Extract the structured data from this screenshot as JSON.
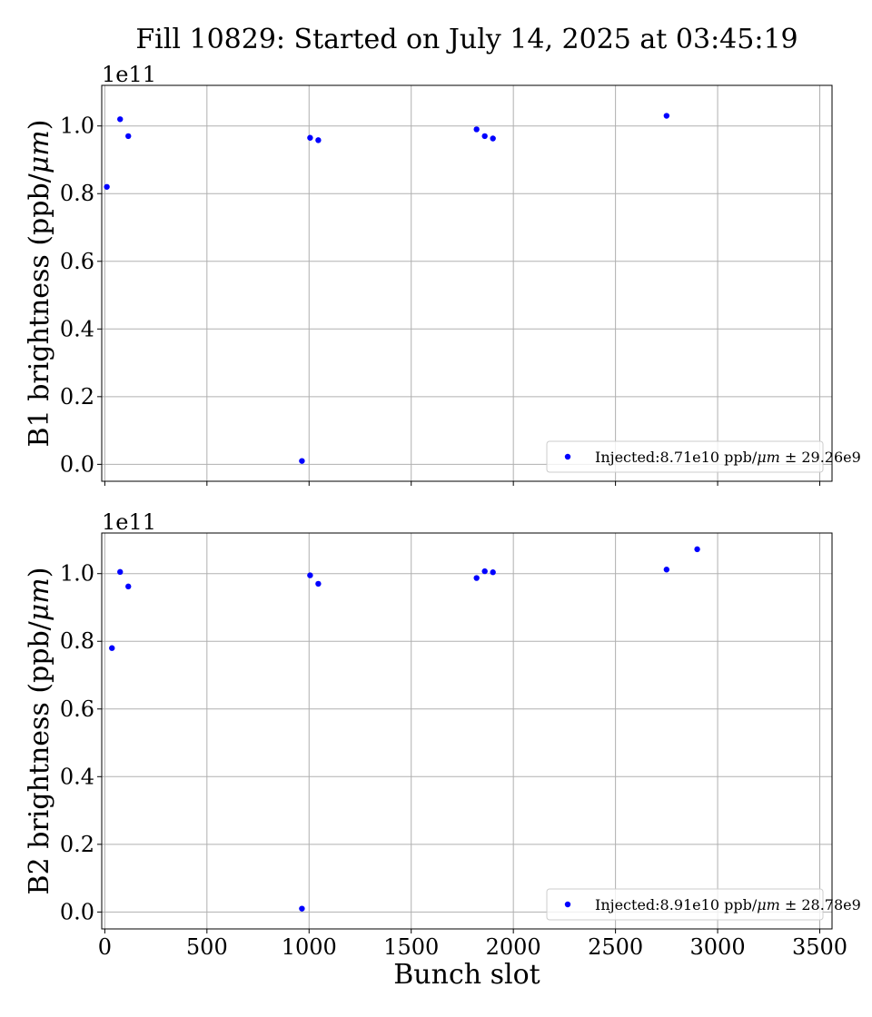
{
  "chart_data": {
    "type": "scatter",
    "title": "Fill 10829: Started on July 14, 2025 at 03:45:19",
    "xlabel": "Bunch slot",
    "xlim": [
      -15,
      3560
    ],
    "xticks": [
      0,
      500,
      1000,
      1500,
      2000,
      2500,
      3000,
      3500
    ],
    "panels": [
      {
        "ylabel": "B1 brightness (ppb/",
        "ylabel_unit": "μm",
        "ylabel_end": ")",
        "offset_text": "1e11",
        "ylim": [
          -0.05,
          1.12
        ],
        "yticks": [
          0.0,
          0.2,
          0.4,
          0.6,
          0.8,
          1.0
        ],
        "ytick_labels": [
          "0.0",
          "0.2",
          "0.4",
          "0.6",
          "0.8",
          "1.0"
        ],
        "legend": "Injected:8.71e10 ppb/",
        "legend_unit": "μm",
        "legend_end": " ± 29.26e9",
        "legend_loc": "lower right",
        "series": [
          {
            "color": "#0000ff",
            "points": [
              [
                10,
                0.82
              ],
              [
                75,
                1.02
              ],
              [
                115,
                0.97
              ],
              [
                965,
                0.01
              ],
              [
                1005,
                0.965
              ],
              [
                1045,
                0.958
              ],
              [
                1820,
                0.99
              ],
              [
                1860,
                0.97
              ],
              [
                1900,
                0.963
              ],
              [
                2750,
                1.03
              ]
            ]
          }
        ]
      },
      {
        "ylabel": "B2 brightness (ppb/",
        "ylabel_unit": "μm",
        "ylabel_end": ")",
        "offset_text": "1e11",
        "ylim": [
          -0.05,
          1.12
        ],
        "yticks": [
          0.0,
          0.2,
          0.4,
          0.6,
          0.8,
          1.0
        ],
        "ytick_labels": [
          "0.0",
          "0.2",
          "0.4",
          "0.6",
          "0.8",
          "1.0"
        ],
        "legend": "Injected:8.91e10 ppb/",
        "legend_unit": "μm",
        "legend_end": " ± 28.78e9",
        "legend_loc": "lower right",
        "series": [
          {
            "color": "#0000ff",
            "points": [
              [
                35,
                0.78
              ],
              [
                75,
                1.005
              ],
              [
                115,
                0.962
              ],
              [
                965,
                0.01
              ],
              [
                1005,
                0.995
              ],
              [
                1045,
                0.97
              ],
              [
                1820,
                0.987
              ],
              [
                1860,
                1.007
              ],
              [
                1900,
                1.004
              ],
              [
                2750,
                1.012
              ],
              [
                2900,
                1.072
              ]
            ]
          }
        ]
      }
    ]
  }
}
